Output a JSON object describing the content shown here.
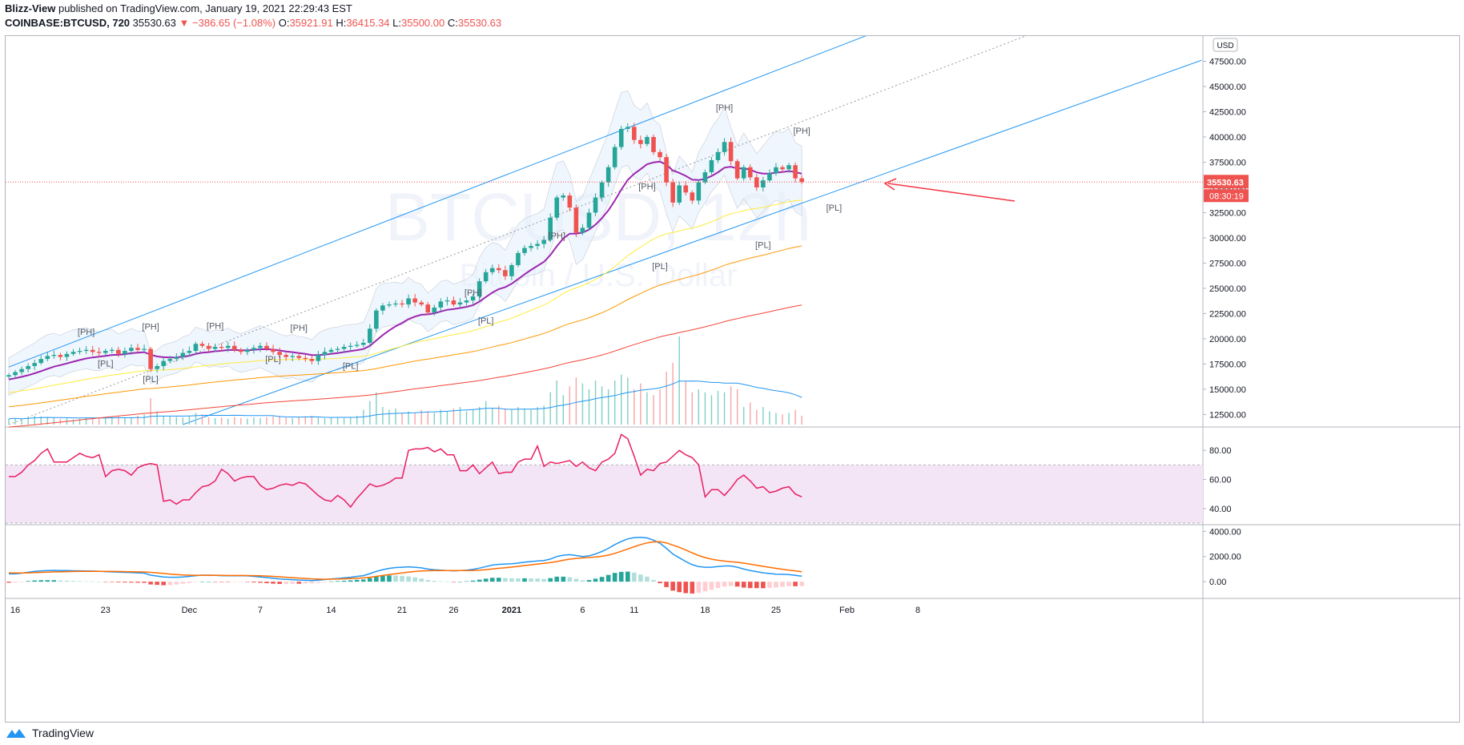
{
  "header": {
    "author": "Blizz-View",
    "published_text": "published on TradingView.com, January 19, 2021 22:29:43 EST",
    "symbol": "COINBASE:BTCUSD, 720",
    "last": "35530.63",
    "change_arrow": "▼",
    "change": "−386.65 (−1.08%)",
    "o_label": "O:",
    "o_value": "35921.91",
    "h_label": "H:",
    "h_value": "36415.34",
    "l_label": "L:",
    "l_value": "35500.00",
    "c_label": "C:",
    "c_value": "35530.63"
  },
  "currency_badge": "USD",
  "price_tag": {
    "price": "35530.63",
    "countdown": "08:30:19"
  },
  "watermark": {
    "symbol": "BTCUSD",
    "interval": "12h",
    "name": "Bitcoin / U.S. Dollar"
  },
  "footer": {
    "brand": "TradingView",
    "logo_icon": "tradingview-logo-icon"
  },
  "colors": {
    "up": "#26a69a",
    "down": "#ef5350",
    "channel": "#2196f3",
    "mid_line": "#9598a1",
    "ema_fast": "#9c27b0",
    "ema_mid": "#ffeb3b",
    "ema_slow": "#ff9800",
    "ema_long": "#f44336",
    "rsi": "#e91e63",
    "rsi_band": "#f3e5f5",
    "macd": "#2196f3",
    "signal": "#ff6d00",
    "vol_ma": "#2196f3",
    "arrow": "#f23645"
  },
  "chart_data": {
    "type": "candlestick",
    "price_axis": {
      "ylim": [
        11500,
        50000
      ],
      "ticks": [
        12500,
        15000,
        17500,
        20000,
        22500,
        25000,
        27500,
        30000,
        32500,
        35000,
        37500,
        40000,
        42500,
        45000,
        47500,
        50000
      ]
    },
    "x_labels": [
      "16",
      "23",
      "Dec",
      "7",
      "14",
      "21",
      "26",
      "2021",
      "6",
      "11",
      "18",
      "25",
      "Feb",
      "8"
    ],
    "x_label_bars": [
      1,
      15,
      28,
      39,
      50,
      61,
      69,
      78,
      89,
      97,
      108,
      119,
      130,
      141
    ],
    "last_price": 35530.63,
    "closes": [
      16400,
      16700,
      17000,
      17300,
      17600,
      18000,
      18300,
      18400,
      18200,
      18500,
      18700,
      18800,
      18900,
      18700,
      18600,
      18800,
      18900,
      18500,
      18800,
      19100,
      18900,
      19000,
      17000,
      17300,
      17800,
      18000,
      18200,
      18600,
      18800,
      19500,
      19300,
      19000,
      19200,
      19100,
      19300,
      18900,
      18700,
      18900,
      19100,
      19300,
      19000,
      18700,
      18400,
      18200,
      18300,
      18100,
      18000,
      17800,
      18400,
      18700,
      18900,
      19000,
      19200,
      19300,
      19400,
      19600,
      21000,
      22800,
      23300,
      23400,
      23500,
      23400,
      24000,
      23600,
      23400,
      22600,
      23100,
      23700,
      23800,
      23400,
      23600,
      23800,
      24200,
      25700,
      26600,
      27000,
      26800,
      26200,
      27300,
      28500,
      29000,
      29200,
      29400,
      29800,
      32000,
      34000,
      34200,
      33000,
      30500,
      31000,
      32500,
      34000,
      35500,
      37000,
      39000,
      40800,
      41000,
      39700,
      39300,
      40000,
      38500,
      38000,
      35500,
      33500,
      35200,
      34500,
      33700,
      35500,
      36500,
      37700,
      38500,
      39500,
      37600,
      35900,
      37000,
      36000,
      35000,
      35700,
      36400,
      37000,
      36800,
      37200,
      35900,
      35530.63
    ],
    "volume_axis": {
      "max": 300000
    },
    "volumes": [
      20000,
      22000,
      18000,
      25000,
      30000,
      28000,
      26000,
      24000,
      20000,
      22000,
      18000,
      20000,
      25000,
      22000,
      20000,
      24000,
      26000,
      28000,
      25000,
      22000,
      30000,
      35000,
      90000,
      45000,
      30000,
      28000,
      26000,
      24000,
      30000,
      40000,
      35000,
      25000,
      22000,
      24000,
      20000,
      25000,
      22000,
      20000,
      24000,
      22000,
      25000,
      28000,
      30000,
      24000,
      22000,
      26000,
      28000,
      30000,
      25000,
      22000,
      24000,
      26000,
      22000,
      24000,
      30000,
      50000,
      80000,
      110000,
      60000,
      50000,
      55000,
      40000,
      45000,
      40000,
      50000,
      45000,
      40000,
      50000,
      45000,
      55000,
      60000,
      45000,
      50000,
      60000,
      80000,
      55000,
      65000,
      55000,
      50000,
      60000,
      55000,
      50000,
      60000,
      65000,
      110000,
      150000,
      100000,
      130000,
      160000,
      140000,
      120000,
      150000,
      130000,
      120000,
      150000,
      170000,
      160000,
      120000,
      140000,
      110000,
      100000,
      120000,
      180000,
      210000,
      300000,
      150000,
      110000,
      120000,
      110000,
      100000,
      115000,
      110000,
      130000,
      120000,
      60000,
      75000,
      50000,
      60000,
      45000,
      40000,
      35000,
      40000,
      50000,
      30000
    ],
    "rsi_axis": {
      "ylim": [
        30,
        95
      ],
      "ticks": [
        40,
        60,
        80
      ],
      "band": [
        30,
        70
      ]
    },
    "rsi": [
      62,
      62,
      65,
      70,
      73,
      78,
      81,
      72,
      72,
      72,
      75,
      78,
      76,
      75,
      77,
      62,
      66,
      67,
      66,
      63,
      68,
      70,
      71,
      70,
      45,
      46,
      43,
      46,
      46,
      51,
      55,
      56,
      59,
      67,
      64,
      59,
      61,
      62,
      62,
      56,
      53,
      54,
      56,
      57,
      56,
      58,
      57,
      53,
      49,
      46,
      45,
      49,
      46,
      41,
      47,
      52,
      57,
      55,
      56,
      58,
      61,
      61,
      80,
      81,
      81,
      82,
      79,
      81,
      77,
      77,
      66,
      66,
      70,
      64,
      68,
      72,
      64,
      65,
      65,
      72,
      74,
      74,
      83,
      69,
      72,
      71,
      72,
      73,
      69,
      72,
      68,
      66,
      72,
      74,
      78,
      91,
      88,
      76,
      63,
      67,
      66,
      71,
      72,
      76,
      80,
      77,
      75,
      70,
      48,
      53,
      53,
      49,
      54,
      60,
      63,
      59,
      54,
      55,
      51,
      52,
      54,
      55,
      50,
      48
    ],
    "macd_axis": {
      "ylim": [
        -1200,
        4400
      ],
      "ticks": [
        0,
        2000,
        4000
      ]
    },
    "macd": [
      620,
      620,
      680,
      750,
      820,
      860,
      880,
      900,
      890,
      880,
      870,
      860,
      850,
      840,
      830,
      800,
      780,
      760,
      740,
      720,
      700,
      680,
      520,
      450,
      380,
      350,
      350,
      380,
      420,
      480,
      520,
      520,
      500,
      480,
      470,
      470,
      480,
      460,
      420,
      380,
      330,
      270,
      210,
      180,
      160,
      130,
      110,
      90,
      120,
      170,
      220,
      260,
      300,
      350,
      420,
      480,
      640,
      820,
      960,
      1060,
      1120,
      1150,
      1180,
      1150,
      1100,
      1000,
      950,
      920,
      890,
      860,
      880,
      920,
      980,
      1080,
      1200,
      1320,
      1380,
      1400,
      1430,
      1480,
      1550,
      1600,
      1650,
      1680,
      1800,
      2000,
      2100,
      2150,
      2080,
      2000,
      2050,
      2200,
      2400,
      2650,
      2950,
      3200,
      3400,
      3500,
      3520,
      3480,
      3300,
      3050,
      2650,
      2200,
      1900,
      1600,
      1350,
      1200,
      1150,
      1150,
      1200,
      1250,
      1250,
      1150,
      1000,
      880,
      800,
      700,
      650,
      600,
      590,
      560,
      500,
      440
    ],
    "signal": [
      700,
      690,
      690,
      700,
      720,
      740,
      760,
      780,
      790,
      800,
      810,
      815,
      820,
      820,
      822,
      820,
      815,
      810,
      800,
      790,
      780,
      770,
      740,
      700,
      660,
      610,
      570,
      540,
      520,
      510,
      510,
      510,
      510,
      500,
      495,
      490,
      490,
      485,
      480,
      465,
      450,
      425,
      390,
      355,
      320,
      290,
      255,
      225,
      205,
      195,
      200,
      210,
      225,
      245,
      270,
      300,
      350,
      420,
      490,
      560,
      630,
      700,
      760,
      810,
      850,
      870,
      880,
      885,
      885,
      880,
      880,
      885,
      895,
      920,
      960,
      1010,
      1065,
      1110,
      1160,
      1220,
      1280,
      1340,
      1400,
      1460,
      1520,
      1600,
      1700,
      1790,
      1850,
      1890,
      1920,
      1960,
      2020,
      2110,
      2250,
      2420,
      2600,
      2780,
      2950,
      3080,
      3160,
      3170,
      3080,
      2910,
      2730,
      2510,
      2290,
      2080,
      1920,
      1790,
      1700,
      1640,
      1590,
      1540,
      1470,
      1390,
      1310,
      1220,
      1140,
      1060,
      990,
      920,
      860,
      790
    ],
    "swing_labels": [
      {
        "text": "[PH]",
        "bar": 12,
        "price": 20400
      },
      {
        "text": "[PL]",
        "bar": 15,
        "price": 17250
      },
      {
        "text": "[PH]",
        "bar": 22,
        "price": 20900
      },
      {
        "text": "[PL]",
        "bar": 22,
        "price": 15700
      },
      {
        "text": "[PH]",
        "bar": 32,
        "price": 21000
      },
      {
        "text": "[PL]",
        "bar": 41,
        "price": 17700
      },
      {
        "text": "[PH]",
        "bar": 45,
        "price": 20800
      },
      {
        "text": "[PL]",
        "bar": 53,
        "price": 17000
      },
      {
        "text": "[PH]",
        "bar": 72,
        "price": 24300
      },
      {
        "text": "[PL]",
        "bar": 74,
        "price": 21500
      },
      {
        "text": "[PH]",
        "bar": 85,
        "price": 29900
      },
      {
        "text": "[PL]",
        "bar": 101,
        "price": 26900
      },
      {
        "text": "[PH]",
        "bar": 99,
        "price": 34800
      },
      {
        "text": "[PH]",
        "bar": 111,
        "price": 42600
      },
      {
        "text": "[PL]",
        "bar": 117,
        "price": 29000
      },
      {
        "text": "[PH]",
        "bar": 123,
        "price": 40300
      },
      {
        "text": "[PL]",
        "bar": 128,
        "price": 32700
      }
    ]
  }
}
